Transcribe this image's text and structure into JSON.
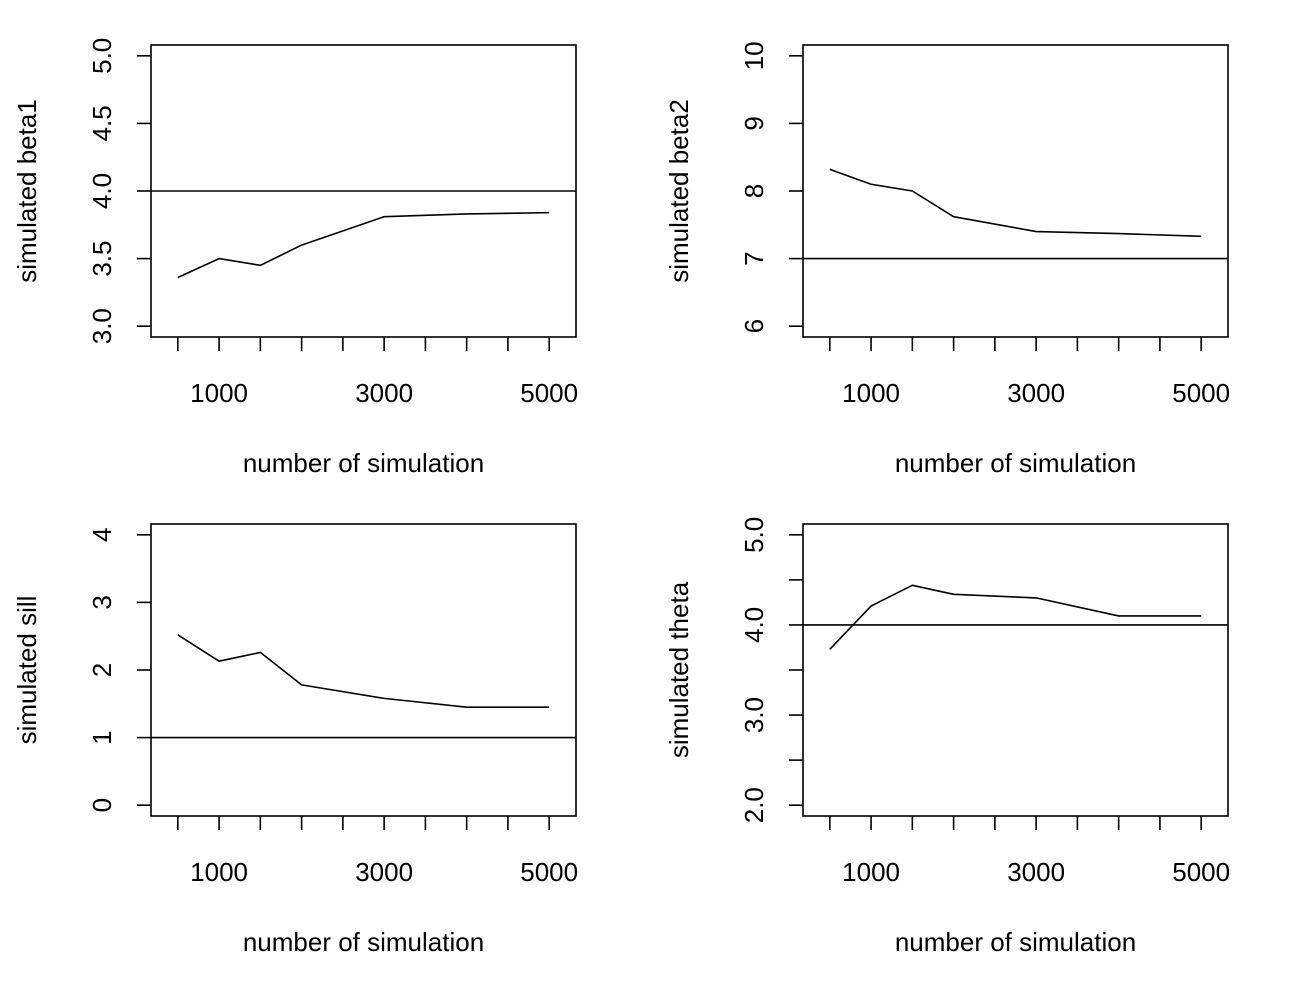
{
  "chart_data": [
    {
      "type": "line",
      "xlabel": "number of simulation",
      "ylabel": "simulated beta1",
      "x": [
        500,
        1000,
        1500,
        2000,
        3000,
        4000,
        5000
      ],
      "values": [
        3.36,
        3.5,
        3.45,
        3.6,
        3.81,
        3.83,
        3.84
      ],
      "reference_line": 4.0,
      "xlim": [
        175,
        5325
      ],
      "ylim": [
        2.92,
        5.08
      ],
      "xticks": [
        500,
        1000,
        1500,
        2000,
        2500,
        3000,
        3500,
        4000,
        4500,
        5000
      ],
      "xtick_labels": [
        "1000",
        "3000",
        "5000"
      ],
      "xtick_label_values": [
        1000,
        3000,
        5000
      ],
      "yticks": [
        3.0,
        3.5,
        4.0,
        4.5,
        5.0
      ],
      "ytick_labels": [
        "3.0",
        "3.5",
        "4.0",
        "4.5",
        "5.0"
      ],
      "grid": false
    },
    {
      "type": "line",
      "xlabel": "number of simulation",
      "ylabel": "simulated beta2",
      "x": [
        500,
        1000,
        1500,
        2000,
        3000,
        4000,
        5000
      ],
      "values": [
        8.32,
        8.1,
        8.0,
        7.62,
        7.4,
        7.37,
        7.33
      ],
      "reference_line": 7.0,
      "xlim": [
        175,
        5325
      ],
      "ylim": [
        5.84,
        10.16
      ],
      "xticks": [
        500,
        1000,
        1500,
        2000,
        2500,
        3000,
        3500,
        4000,
        4500,
        5000
      ],
      "xtick_labels": [
        "1000",
        "3000",
        "5000"
      ],
      "xtick_label_values": [
        1000,
        3000,
        5000
      ],
      "yticks": [
        6,
        7,
        8,
        9,
        10
      ],
      "ytick_labels": [
        "6",
        "7",
        "8",
        "9",
        "10"
      ],
      "grid": false
    },
    {
      "type": "line",
      "xlabel": "number of simulation",
      "ylabel": "simulated sill",
      "x": [
        500,
        1000,
        1500,
        2000,
        3000,
        4000,
        5000
      ],
      "values": [
        2.52,
        2.13,
        2.26,
        1.78,
        1.58,
        1.45,
        1.45
      ],
      "reference_line": 1.0,
      "xlim": [
        175,
        5325
      ],
      "ylim": [
        -0.16,
        4.16
      ],
      "xticks": [
        500,
        1000,
        1500,
        2000,
        2500,
        3000,
        3500,
        4000,
        4500,
        5000
      ],
      "xtick_labels": [
        "1000",
        "3000",
        "5000"
      ],
      "xtick_label_values": [
        1000,
        3000,
        5000
      ],
      "yticks": [
        0,
        1,
        2,
        3,
        4
      ],
      "ytick_labels": [
        "0",
        "1",
        "2",
        "3",
        "4"
      ],
      "grid": false
    },
    {
      "type": "line",
      "xlabel": "number of simulation",
      "ylabel": "simulated theta",
      "x": [
        500,
        1000,
        1500,
        2000,
        3000,
        4000,
        5000
      ],
      "values": [
        3.73,
        4.21,
        4.44,
        4.34,
        4.3,
        4.1,
        4.1
      ],
      "reference_line": 4.0,
      "xlim": [
        175,
        5325
      ],
      "ylim": [
        1.88,
        5.12
      ],
      "xticks": [
        500,
        1000,
        1500,
        2000,
        2500,
        3000,
        3500,
        4000,
        4500,
        5000
      ],
      "xtick_labels": [
        "1000",
        "3000",
        "5000"
      ],
      "xtick_label_values": [
        1000,
        3000,
        5000
      ],
      "yticks": [
        2.0,
        2.5,
        3.0,
        3.5,
        4.0,
        4.5,
        5.0
      ],
      "ytick_labels": [
        "2.0",
        "",
        "3.0",
        "",
        "4.0",
        "",
        "5.0"
      ],
      "grid": false
    }
  ]
}
